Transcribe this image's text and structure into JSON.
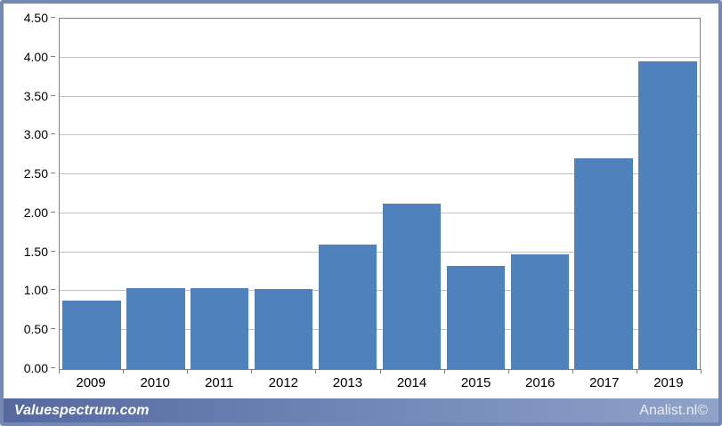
{
  "chart_data": {
    "type": "bar",
    "categories": [
      "2009",
      "2010",
      "2011",
      "2012",
      "2013",
      "2014",
      "2015",
      "2016",
      "2017",
      "2019"
    ],
    "values": [
      0.88,
      1.04,
      1.04,
      1.03,
      1.6,
      2.12,
      1.33,
      1.47,
      2.71,
      3.95
    ],
    "title": "",
    "xlabel": "",
    "ylabel": "",
    "ylim": [
      0,
      4.5
    ],
    "ytick_step": 0.5,
    "ytick_format_decimals": 2,
    "grid": true,
    "legend_position": "none",
    "bar_color": "#4f81bd"
  },
  "footer": {
    "left_text": "Valuespectrum.com",
    "right_text": "Analist.nl©"
  },
  "colors": {
    "frame": "#7488b6",
    "grid": "#c3c3c3",
    "plot_border": "#808080",
    "bar": "#4f81bd"
  }
}
